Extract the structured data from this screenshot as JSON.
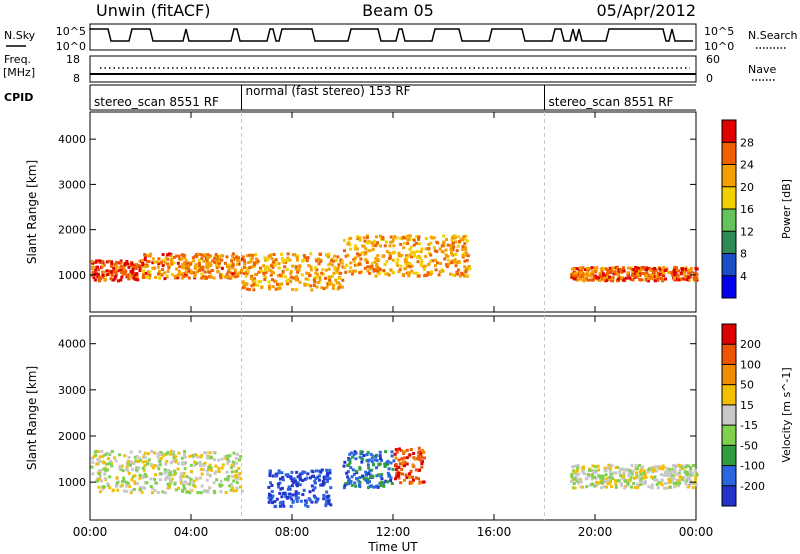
{
  "header": {
    "station": "Unwin (fitACF)",
    "beam": "Beam 05",
    "date": "05/Apr/2012"
  },
  "top_panel": {
    "left_label_top": "N.Sky",
    "left_ticks": [
      "10^5",
      "10^0"
    ],
    "right_ticks": [
      "10^5",
      "10^0"
    ],
    "right_label": "N.Search"
  },
  "freq_panel": {
    "left_label_top": "Freq.",
    "left_label_unit": "[MHz]",
    "left_ticks": [
      "18",
      "8"
    ],
    "right_ticks": [
      "60",
      "0"
    ],
    "right_label": "Nave"
  },
  "cpid": {
    "label": "CPID",
    "segments": [
      {
        "name": "stereo_scan 8551 RF",
        "start_h": 0,
        "end_h": 6
      },
      {
        "name": "normal (fast stereo) 153 RF",
        "start_h": 6,
        "end_h": 18
      },
      {
        "name": "stereo_scan 8551 RF",
        "start_h": 18,
        "end_h": 24
      }
    ]
  },
  "chart_data": [
    {
      "type": "heatmap",
      "quantity": "Power",
      "ylabel": "Slant Range [km]",
      "ylim": [
        180,
        4600
      ],
      "yticks": [
        "4000",
        "3000",
        "2000",
        "1000"
      ],
      "xlim_hours": [
        0,
        24
      ],
      "colorbar": {
        "label": "Power [dB]",
        "ticks": [
          "28",
          "24",
          "20",
          "16",
          "12",
          "8",
          "4"
        ],
        "colors": [
          "#0000ee",
          "#1a4fc8",
          "#2e8b57",
          "#66c25a",
          "#f0d000",
          "#f4a000",
          "#f06000",
          "#e00000"
        ],
        "range": [
          0,
          32
        ]
      },
      "note_bands": [
        {
          "start_h": 0.0,
          "end_h": 2.0,
          "range_km": [
            900,
            1350
          ],
          "value": 27
        },
        {
          "start_h": 2.0,
          "end_h": 6.0,
          "range_km": [
            950,
            1500
          ],
          "value": 24
        },
        {
          "start_h": 6.0,
          "end_h": 10.0,
          "range_km": [
            700,
            1500
          ],
          "value": 22
        },
        {
          "start_h": 10.0,
          "end_h": 15.0,
          "range_km": [
            1000,
            1900
          ],
          "value": 22
        },
        {
          "start_h": 19.0,
          "end_h": 24.0,
          "range_km": [
            900,
            1200
          ],
          "value": 26
        }
      ]
    },
    {
      "type": "heatmap",
      "quantity": "Velocity",
      "ylabel": "Slant Range [km]",
      "ylim": [
        180,
        4600
      ],
      "yticks": [
        "4000",
        "3000",
        "2000",
        "1000"
      ],
      "xlim_hours": [
        0,
        24
      ],
      "xticks": [
        "00:00",
        "04:00",
        "08:00",
        "12:00",
        "16:00",
        "20:00",
        "00:00"
      ],
      "xlabel": "Time UT",
      "colorbar": {
        "label": "Velocity [m s^-1]",
        "ticks": [
          "200",
          "100",
          "50",
          "15",
          "-15",
          "-50",
          "-100",
          "-200"
        ],
        "colors": [
          "#2233cc",
          "#2b66e0",
          "#2e9e3e",
          "#7fd04c",
          "#c8c8c8",
          "#f2c000",
          "#f08c00",
          "#ee5500",
          "#dd0000"
        ],
        "range": [
          -250,
          250
        ]
      },
      "note_bands": [
        {
          "start_h": 0.0,
          "end_h": 6.0,
          "range_km": [
            800,
            1700
          ],
          "value": 0
        },
        {
          "start_h": 7.0,
          "end_h": 9.5,
          "range_km": [
            500,
            1300
          ],
          "value": -200
        },
        {
          "start_h": 10.0,
          "end_h": 12.0,
          "range_km": [
            900,
            1700
          ],
          "value": -150
        },
        {
          "start_h": 12.0,
          "end_h": 13.2,
          "range_km": [
            1000,
            1800
          ],
          "value": 180
        },
        {
          "start_h": 19.0,
          "end_h": 24.0,
          "range_km": [
            900,
            1400
          ],
          "value": 0
        }
      ]
    }
  ]
}
